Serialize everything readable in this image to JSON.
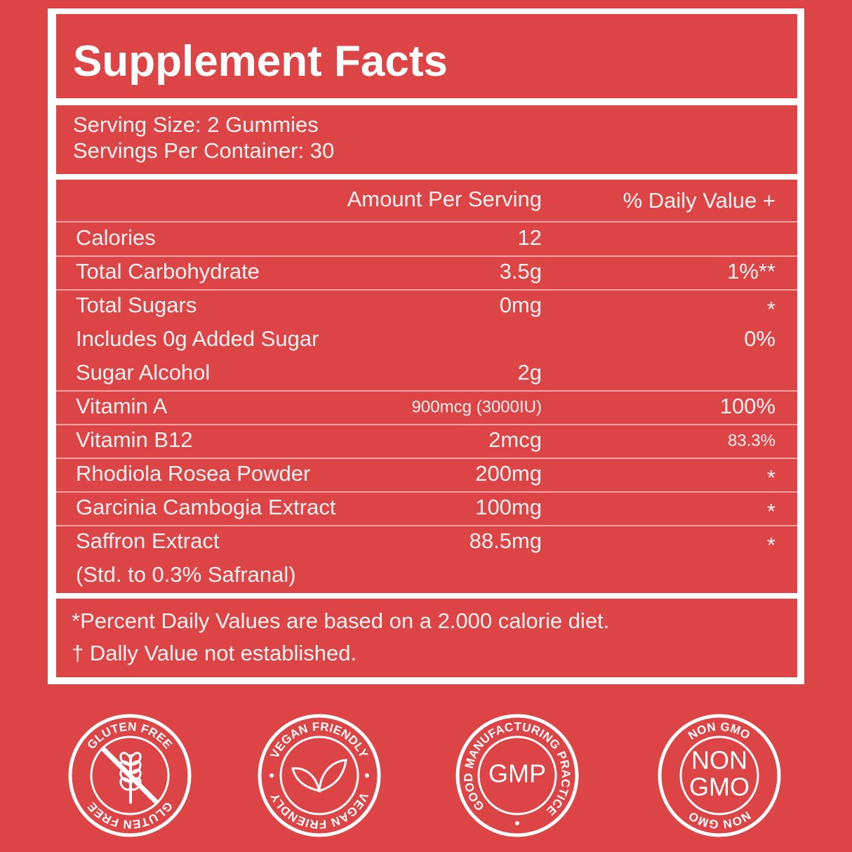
{
  "header": {
    "title": "Supplement Facts"
  },
  "serving": {
    "size": "Serving Size: 2 Gummies",
    "per_container": "Servings Per Container: 30"
  },
  "table": {
    "columns": [
      "Amount Per Serving",
      "% Daily Value +"
    ],
    "groups": [
      [
        {
          "name": "Calories",
          "amount": "12"
        }
      ],
      [
        {
          "name": "Total Carbohydrate",
          "amount": "3.5g",
          "dv": "1%**"
        }
      ],
      [
        {
          "name": "Total Sugars",
          "amount": "0mg",
          "dv": "*"
        },
        {
          "name": "Includes 0g Added Sugar",
          "dv": "0%"
        },
        {
          "name": "Sugar Alcohol",
          "amount": "2g"
        }
      ],
      [
        {
          "name": "Vitamin A",
          "amount": "900mcg (3000IU)",
          "dv": "100%"
        }
      ],
      [
        {
          "name": "Vitamin B12",
          "amount": "2mcg",
          "dv": "83.3%"
        }
      ],
      [
        {
          "name": "Rhodiola Rosea Powder",
          "amount": "200mg",
          "dv": "*"
        }
      ],
      [
        {
          "name": "Garcinia Cambogia Extract",
          "amount": "100mg",
          "dv": "*"
        }
      ],
      [
        {
          "name": "Saffron Extract",
          "amount": "88.5mg",
          "dv": "*",
          "note": "(Std. to 0.3% Safranal)"
        }
      ]
    ]
  },
  "footnotes": [
    "*Percent Daily Values are based on a 2.000 calorie diet.",
    "† Dally Value not established."
  ],
  "badges": [
    {
      "ring_top": "GLUTEN FREE",
      "ring_bottom": "GLUTEN FREE"
    },
    {
      "ring_top": "VEGAN FRIENDLY",
      "ring_bottom": "VEGAN FRIENDLY"
    },
    {
      "ring": "GOOD MANUFACTURING PRACTICE",
      "center": [
        "GMP"
      ]
    },
    {
      "ring_top": "NON GMO",
      "ring_bottom": "NON GMO",
      "center": [
        "NON",
        "GMO"
      ]
    }
  ]
}
